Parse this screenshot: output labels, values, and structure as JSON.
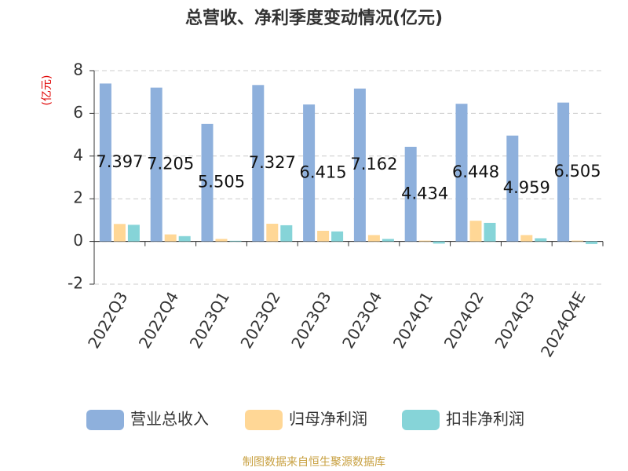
{
  "chart_data": {
    "type": "bar",
    "title": "总营收、净利季度变动情况(亿元)",
    "y_label": "(亿元)",
    "categories": [
      "2022Q3",
      "2022Q4",
      "2023Q1",
      "2023Q2",
      "2023Q3",
      "2023Q4",
      "2024Q1",
      "2024Q2",
      "2024Q3",
      "2024Q4E"
    ],
    "series": [
      {
        "name": "营业总收入",
        "color": "#8eb0dc",
        "labels": true,
        "values": [
          7.397,
          7.205,
          5.505,
          7.327,
          6.415,
          7.162,
          4.434,
          6.448,
          4.959,
          6.505
        ]
      },
      {
        "name": "归母净利润",
        "color": "#ffd796",
        "values": [
          0.82,
          0.33,
          0.12,
          0.83,
          0.5,
          0.3,
          0.04,
          0.97,
          0.3,
          0.04
        ]
      },
      {
        "name": "扣非净利润",
        "color": "#86d4d8",
        "values": [
          0.78,
          0.25,
          0.03,
          0.76,
          0.47,
          0.12,
          -0.1,
          0.87,
          0.15,
          -0.12
        ]
      }
    ],
    "ylim": [
      -2,
      8
    ],
    "yticks": [
      -2,
      0,
      2,
      4,
      6,
      8
    ],
    "grid": true,
    "legend": "bottom",
    "source": "制图数据来自恒生聚源数据库"
  }
}
